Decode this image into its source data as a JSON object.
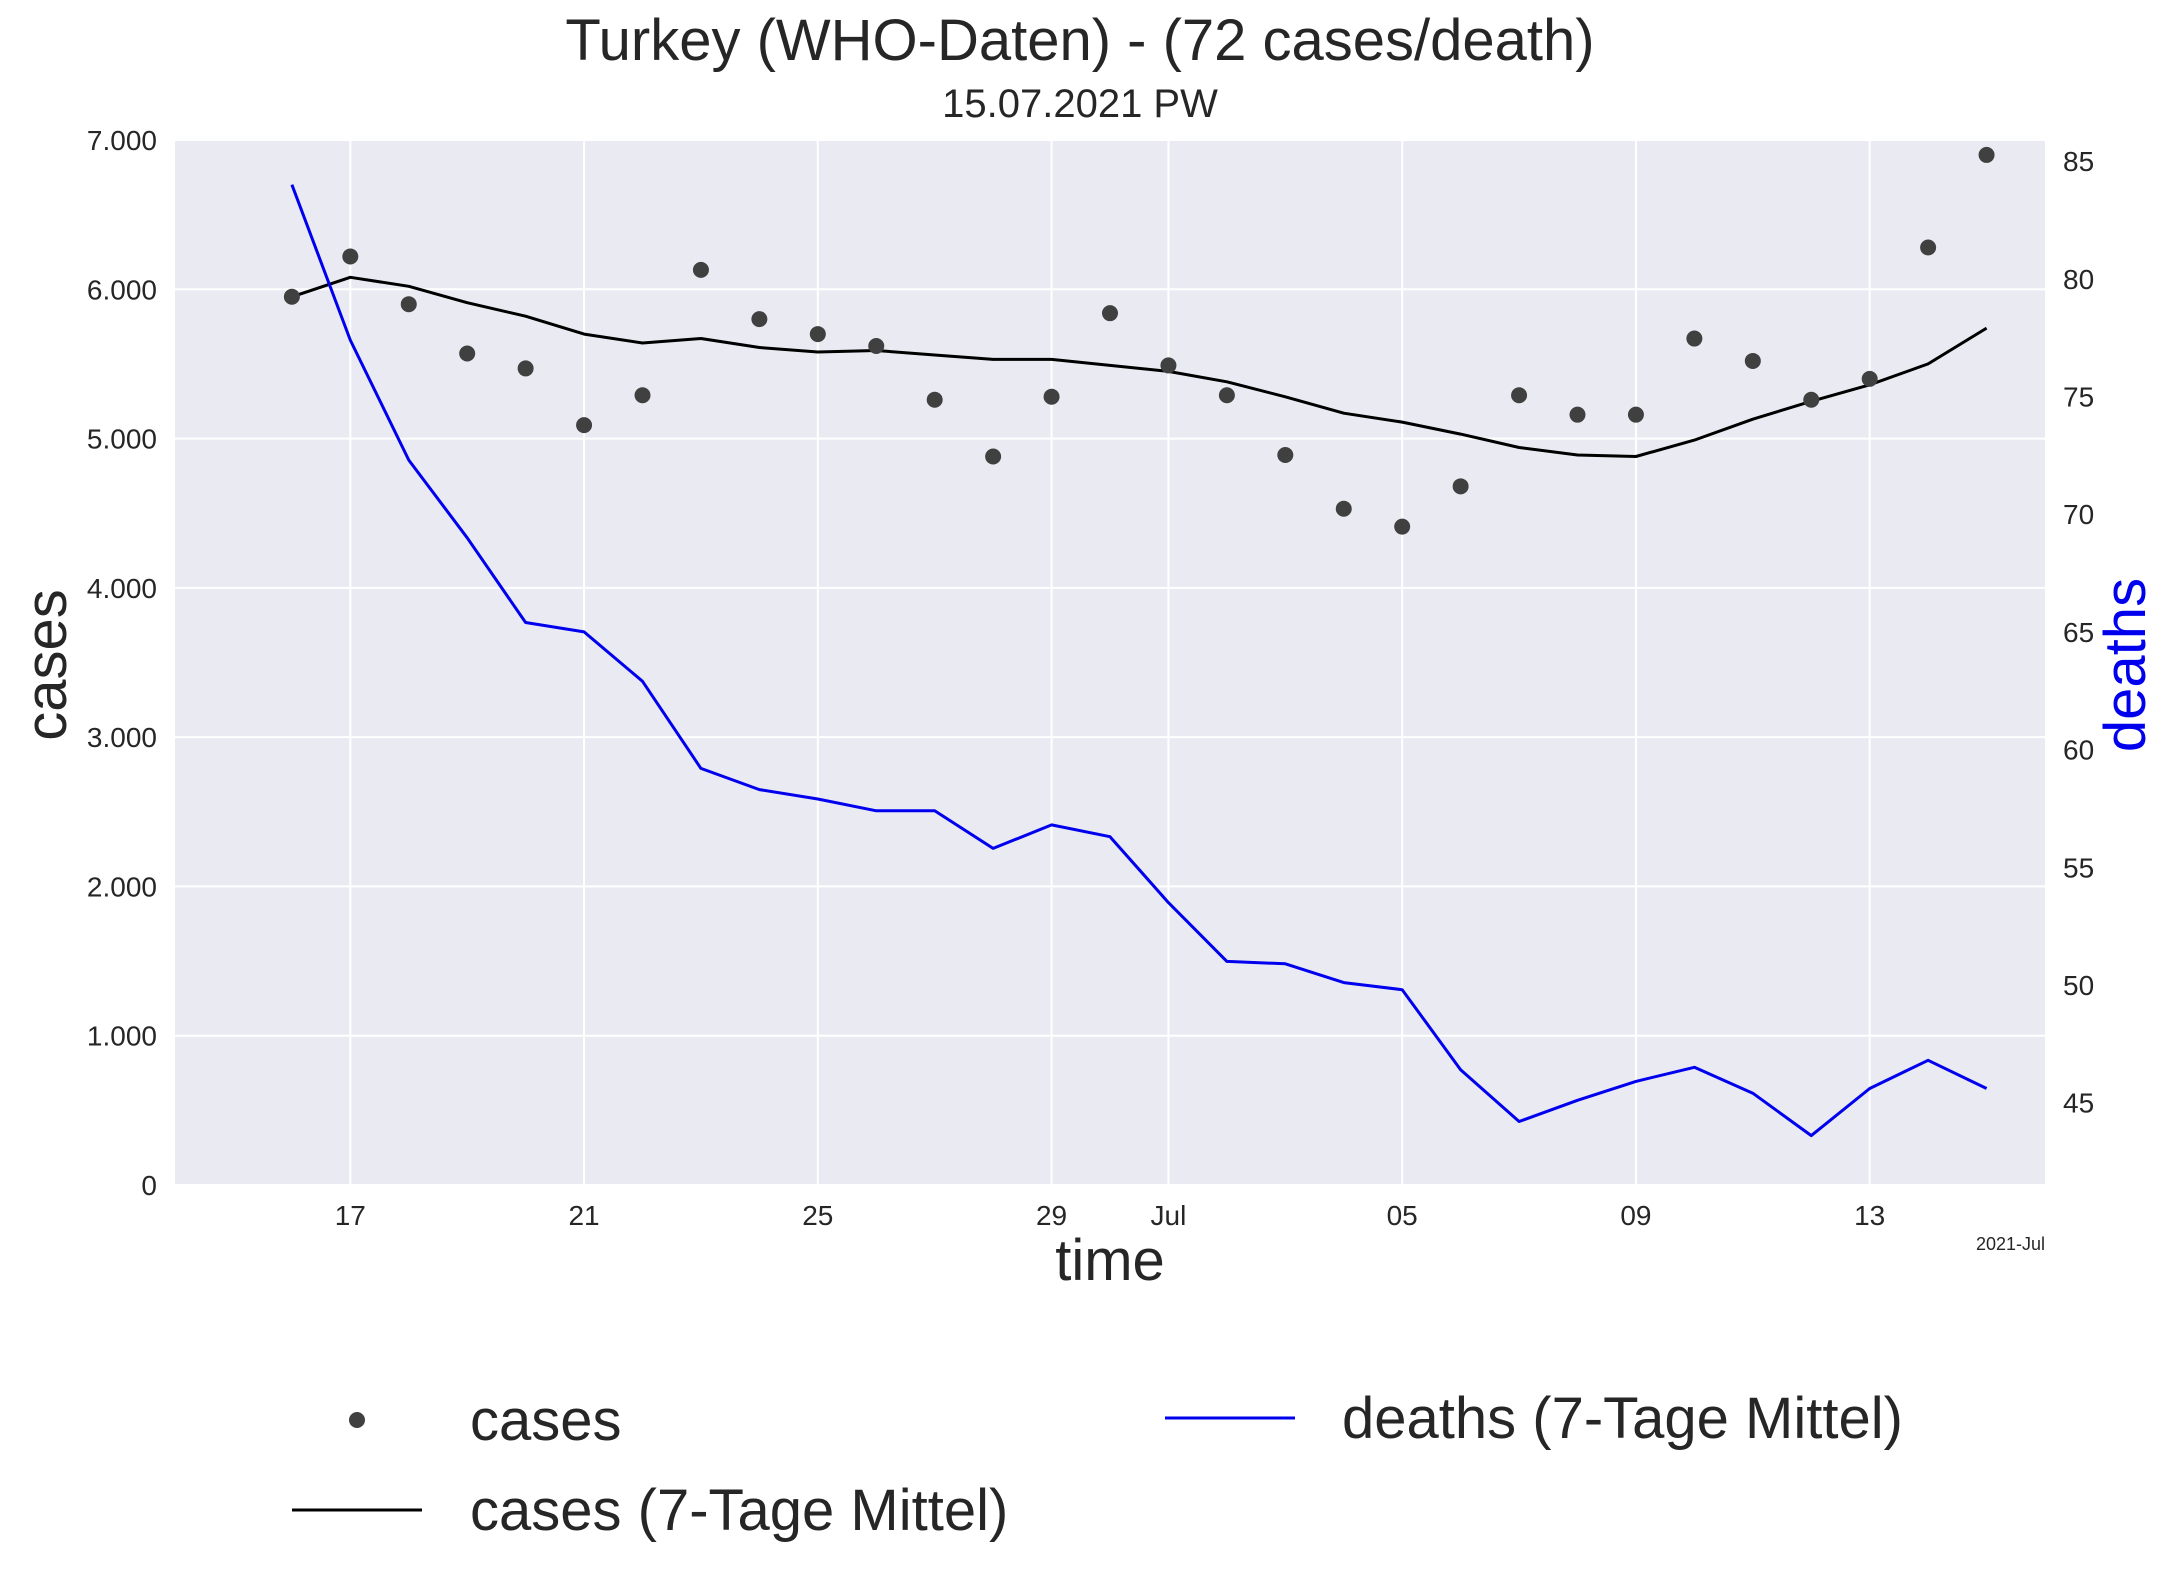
{
  "chart_data": {
    "type": "line",
    "title": "Turkey (WHO-Daten) - (72 cases/death)",
    "subtitle": "15.07.2021 PW",
    "xlabel": "time",
    "ylabel_left": "cases",
    "ylabel_right": "deaths",
    "x_offset_label": "2021-Jul",
    "x_range": [
      "2021-06-14",
      "2021-07-16"
    ],
    "ylim_left": [
      0,
      7000
    ],
    "ylim_right": [
      41.5,
      85.9
    ],
    "grid": true,
    "legend_position": "bottom",
    "x_ticks": [
      {
        "date": "2021-06-17",
        "label": "17"
      },
      {
        "date": "2021-06-21",
        "label": "21"
      },
      {
        "date": "2021-06-25",
        "label": "25"
      },
      {
        "date": "2021-06-29",
        "label": "29"
      },
      {
        "date": "2021-07-01",
        "label": "Jul"
      },
      {
        "date": "2021-07-05",
        "label": "05"
      },
      {
        "date": "2021-07-09",
        "label": "09"
      },
      {
        "date": "2021-07-13",
        "label": "13"
      }
    ],
    "y_ticks_left": [
      {
        "value": 0,
        "label": "0"
      },
      {
        "value": 1000,
        "label": "1.000"
      },
      {
        "value": 2000,
        "label": "2.000"
      },
      {
        "value": 3000,
        "label": "3.000"
      },
      {
        "value": 4000,
        "label": "4.000"
      },
      {
        "value": 5000,
        "label": "5.000"
      },
      {
        "value": 6000,
        "label": "6.000"
      },
      {
        "value": 7000,
        "label": "7.000"
      }
    ],
    "y_ticks_right": [
      {
        "value": 45,
        "label": "45"
      },
      {
        "value": 50,
        "label": "50"
      },
      {
        "value": 55,
        "label": "55"
      },
      {
        "value": 60,
        "label": "60"
      },
      {
        "value": 65,
        "label": "65"
      },
      {
        "value": 70,
        "label": "70"
      },
      {
        "value": 75,
        "label": "75"
      },
      {
        "value": 80,
        "label": "80"
      },
      {
        "value": 85,
        "label": "85"
      }
    ],
    "dates": [
      "2021-06-16",
      "2021-06-17",
      "2021-06-18",
      "2021-06-19",
      "2021-06-20",
      "2021-06-21",
      "2021-06-22",
      "2021-06-23",
      "2021-06-24",
      "2021-06-25",
      "2021-06-26",
      "2021-06-27",
      "2021-06-28",
      "2021-06-29",
      "2021-06-30",
      "2021-07-01",
      "2021-07-02",
      "2021-07-03",
      "2021-07-04",
      "2021-07-05",
      "2021-07-06",
      "2021-07-07",
      "2021-07-08",
      "2021-07-09",
      "2021-07-10",
      "2021-07-11",
      "2021-07-12",
      "2021-07-13",
      "2021-07-14",
      "2021-07-15"
    ],
    "series": [
      {
        "name": "cases",
        "kind": "scatter",
        "axis": "left",
        "color": "#404040",
        "values": [
          5950,
          6220,
          5900,
          5570,
          5470,
          5090,
          5290,
          6130,
          5800,
          5700,
          5620,
          5260,
          4880,
          5280,
          5840,
          5490,
          5290,
          4890,
          4530,
          4410,
          4680,
          5290,
          5160,
          5160,
          5670,
          5520,
          5260,
          5400,
          6280,
          6900
        ]
      },
      {
        "name": "cases (7-Tage Mittel)",
        "kind": "line",
        "axis": "left",
        "color": "#000000",
        "values": [
          5950,
          6080,
          6020,
          5910,
          5820,
          5700,
          5640,
          5670,
          5610,
          5580,
          5590,
          5560,
          5530,
          5530,
          5490,
          5450,
          5380,
          5280,
          5170,
          5110,
          5030,
          4940,
          4890,
          4880,
          4990,
          5130,
          5250,
          5360,
          5500,
          5740
        ]
      },
      {
        "name": "deaths (7-Tage Mittel)",
        "kind": "line",
        "axis": "right",
        "color": "#0000ee",
        "values": [
          84.0,
          77.4,
          72.3,
          69.0,
          65.4,
          65.0,
          62.9,
          59.2,
          58.3,
          57.9,
          57.4,
          57.4,
          55.8,
          56.8,
          56.3,
          53.5,
          51.0,
          50.9,
          50.1,
          49.8,
          46.4,
          44.2,
          45.1,
          45.9,
          46.5,
          45.4,
          43.6,
          45.6,
          46.8,
          45.6
        ]
      }
    ]
  }
}
